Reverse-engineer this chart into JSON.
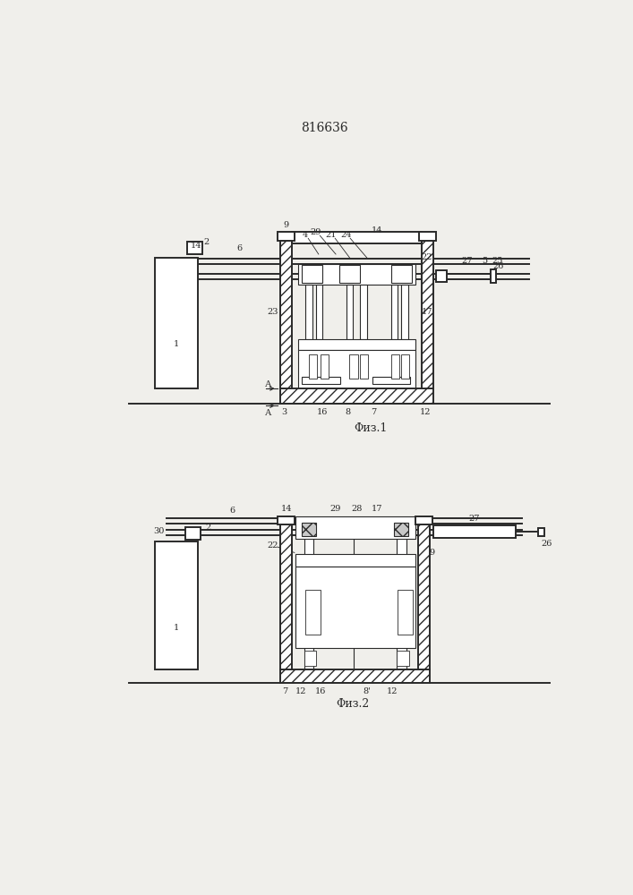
{
  "title": "816636",
  "bg_color": "#f0efeb",
  "line_color": "#2a2a2a",
  "fig1_caption": "Φиз.1",
  "fig2_caption": "Φиз.2"
}
